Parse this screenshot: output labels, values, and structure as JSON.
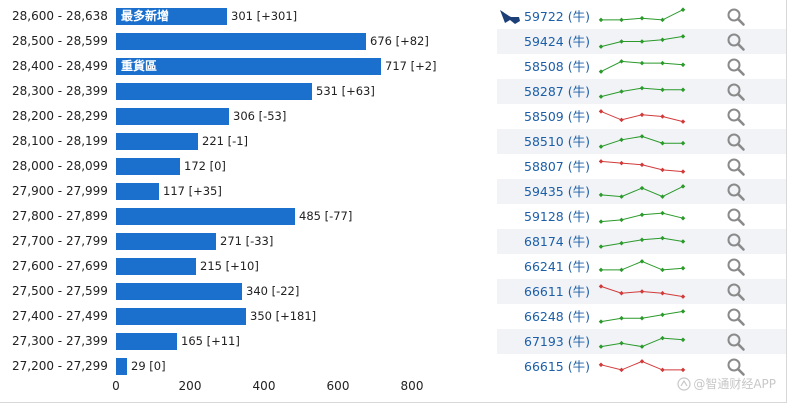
{
  "rows": [
    {
      "range": "28,600 - 28,638",
      "tag": "最多新增",
      "value": 301,
      "value_label": "301 [+301]",
      "code": "59722 (牛)",
      "ship_icon": true,
      "spark": [
        3,
        3,
        4,
        3,
        9
      ],
      "trend": "up"
    },
    {
      "range": "28,500 - 28,599",
      "tag": "",
      "value": 676,
      "value_label": "676 [+82]",
      "code": "59424 (牛)",
      "ship_icon": false,
      "spark": [
        2,
        5,
        5,
        6,
        8
      ],
      "trend": "up"
    },
    {
      "range": "28,400 - 28,499",
      "tag": "重貨區",
      "value": 717,
      "value_label": "717 [+2]",
      "code": "58508 (牛)",
      "ship_icon": false,
      "spark": [
        2,
        8,
        7,
        7,
        6
      ],
      "trend": "up"
    },
    {
      "range": "28,300 - 28,399",
      "tag": "",
      "value": 531,
      "value_label": "531 [+63]",
      "code": "58287 (牛)",
      "ship_icon": false,
      "spark": [
        2,
        5,
        7,
        6,
        6
      ],
      "trend": "up"
    },
    {
      "range": "28,200 - 28,299",
      "tag": "",
      "value": 306,
      "value_label": "306 [-53]",
      "code": "58509 (牛)",
      "ship_icon": false,
      "spark": [
        8,
        3,
        6,
        5,
        2
      ],
      "trend": "down"
    },
    {
      "range": "28,100 - 28,199",
      "tag": "",
      "value": 221,
      "value_label": "221 [-1]",
      "code": "58510 (牛)",
      "ship_icon": false,
      "spark": [
        2,
        6,
        8,
        4,
        4
      ],
      "trend": "up"
    },
    {
      "range": "28,000 - 28,099",
      "tag": "",
      "value": 172,
      "value_label": "172 [0]",
      "code": "58807 (牛)",
      "ship_icon": false,
      "spark": [
        8,
        7,
        6,
        3,
        2
      ],
      "trend": "down"
    },
    {
      "range": "27,900 - 27,999",
      "tag": "",
      "value": 117,
      "value_label": "117 [+35]",
      "code": "59435 (牛)",
      "ship_icon": false,
      "spark": [
        3,
        2,
        7,
        2,
        8
      ],
      "trend": "up"
    },
    {
      "range": "27,800 - 27,899",
      "tag": "",
      "value": 485,
      "value_label": "485 [-77]",
      "code": "59128 (牛)",
      "ship_icon": false,
      "spark": [
        2,
        3,
        6,
        7,
        4
      ],
      "trend": "up"
    },
    {
      "range": "27,700 - 27,799",
      "tag": "",
      "value": 271,
      "value_label": "271 [-33]",
      "code": "68174 (牛)",
      "ship_icon": false,
      "spark": [
        2,
        4,
        6,
        7,
        5
      ],
      "trend": "up"
    },
    {
      "range": "27,600 - 27,699",
      "tag": "",
      "value": 215,
      "value_label": "215 [+10]",
      "code": "66241 (牛)",
      "ship_icon": false,
      "spark": [
        3,
        3,
        8,
        3,
        4
      ],
      "trend": "up"
    },
    {
      "range": "27,500 - 27,599",
      "tag": "",
      "value": 340,
      "value_label": "340 [-22]",
      "code": "66611 (牛)",
      "ship_icon": false,
      "spark": [
        8,
        4,
        5,
        4,
        2
      ],
      "trend": "down"
    },
    {
      "range": "27,400 - 27,499",
      "tag": "",
      "value": 350,
      "value_label": "350 [+181]",
      "code": "66248 (牛)",
      "ship_icon": false,
      "spark": [
        2,
        4,
        4,
        6,
        8
      ],
      "trend": "up"
    },
    {
      "range": "27,300 - 27,399",
      "tag": "",
      "value": 165,
      "value_label": "165 [+11]",
      "code": "67193 (牛)",
      "ship_icon": false,
      "spark": [
        2,
        4,
        2,
        7,
        6
      ],
      "trend": "up"
    },
    {
      "range": "27,200 - 27,299",
      "tag": "",
      "value": 29,
      "value_label": "29 [0]",
      "code": "66615 (牛)",
      "ship_icon": false,
      "spark": [
        6,
        3,
        8,
        3,
        3
      ],
      "trend": "down"
    }
  ],
  "axis": {
    "ticks": [
      "0",
      "200",
      "400",
      "600",
      "800"
    ],
    "max": 800
  },
  "colors": {
    "bar": "#1a70cc",
    "up": "#2a9a2a",
    "down": "#d23a3a",
    "code": "#1c5fa8",
    "row_alt": "#f1f3f7"
  },
  "icons": {
    "row_action": "magnifier-icon",
    "highlight": "ship-icon"
  },
  "watermark": {
    "text": "@智通财经APP"
  }
}
